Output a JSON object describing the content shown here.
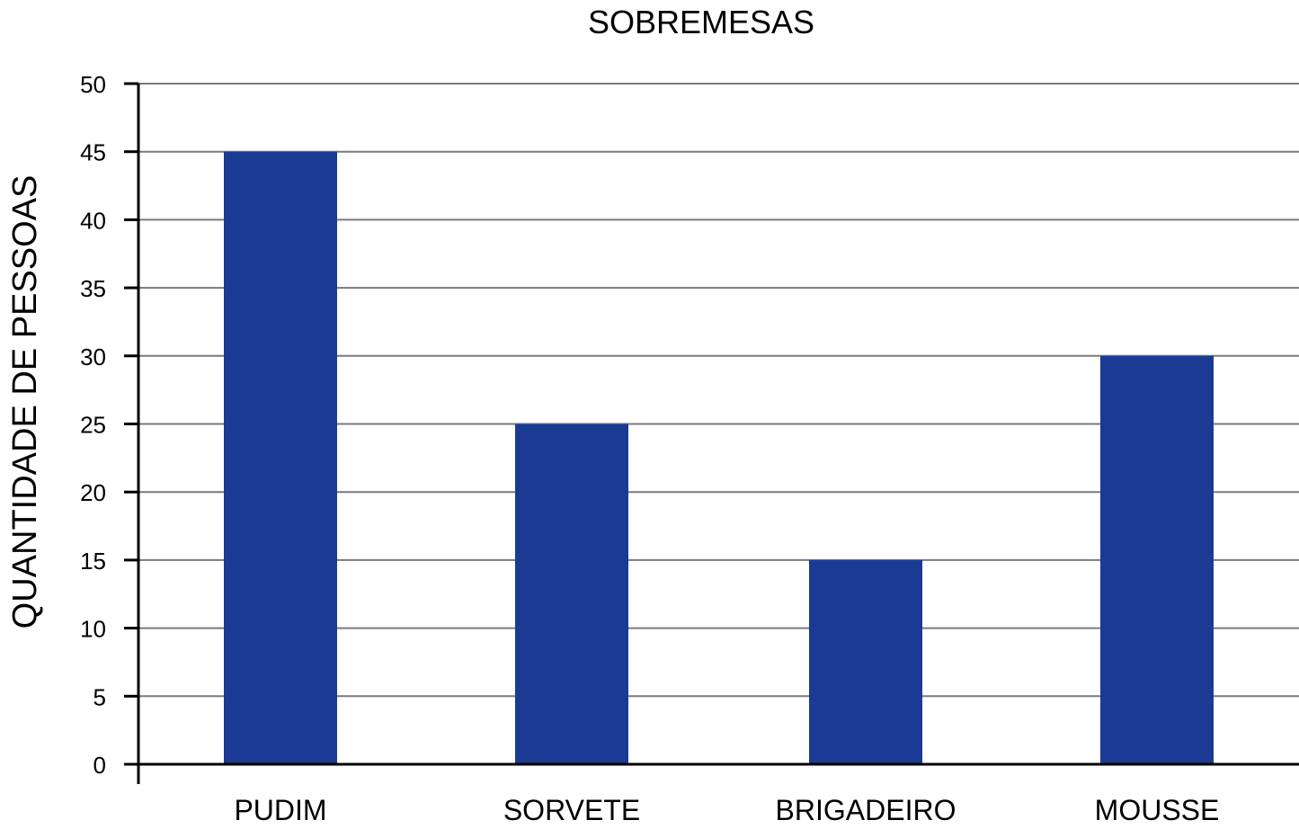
{
  "chart_data": {
    "type": "bar",
    "title": "SOBREMESAS",
    "xlabel": "",
    "ylabel": "QUANTIDADE DE PESSOAS",
    "categories": [
      "PUDIM",
      "SORVETE",
      "BRIGADEIRO",
      "MOUSSE"
    ],
    "values": [
      45,
      25,
      15,
      30
    ],
    "ylim": [
      0,
      50
    ],
    "yticks": [
      0,
      5,
      10,
      15,
      20,
      25,
      30,
      35,
      40,
      45,
      50
    ],
    "grid": true,
    "bar_color": "#1a3a94",
    "grid_color": "#7a7a7a",
    "axis_color": "#000000"
  }
}
